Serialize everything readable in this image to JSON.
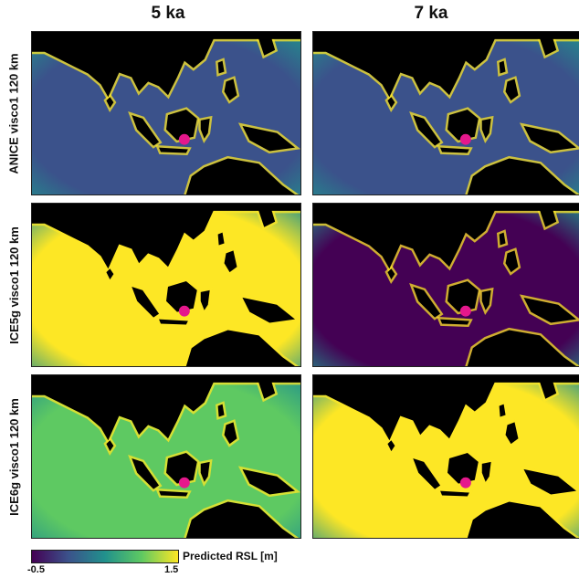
{
  "columns": [
    "5 ka",
    "7 ka"
  ],
  "rows": [
    "ANICE visco1 120 km",
    "ICE5g visco1 120 km",
    "ICE6g visco1 120 km"
  ],
  "colorbar": {
    "label": "Predicted RSL [m]",
    "min_label": "-0.5",
    "max_label": "1.5",
    "colormap": "viridis"
  },
  "colors": {
    "land": "#000000",
    "marker": "#e5188c",
    "very_low": "#440154",
    "low": "#3b528b",
    "mid": "#21918c",
    "mid_high": "#5ec962",
    "high": "#fde725"
  },
  "panels": [
    {
      "row": "ANICE visco1 120 km",
      "column": "5 ka",
      "ocean_tone": "low"
    },
    {
      "row": "ANICE visco1 120 km",
      "column": "7 ka",
      "ocean_tone": "low"
    },
    {
      "row": "ICE5g visco1 120 km",
      "column": "5 ka",
      "ocean_tone": "high"
    },
    {
      "row": "ICE5g visco1 120 km",
      "column": "7 ka",
      "ocean_tone": "very_low"
    },
    {
      "row": "ICE6g visco1 120 km",
      "column": "5 ka",
      "ocean_tone": "mid_high"
    },
    {
      "row": "ICE6g visco1 120 km",
      "column": "7 ka",
      "ocean_tone": "high"
    }
  ]
}
